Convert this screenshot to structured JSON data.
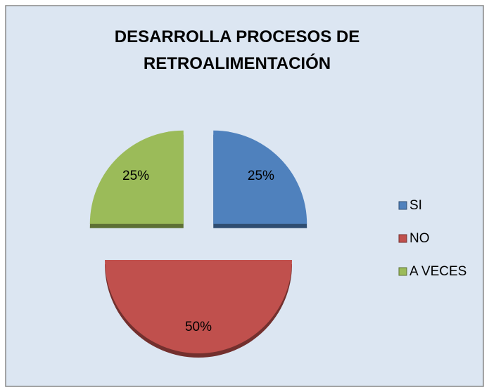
{
  "chart_data": {
    "type": "pie",
    "title": "DESARROLLA PROCESOS DE RETROALIMENTACIÓN",
    "categories": [
      "SI",
      "NO",
      "A VECES"
    ],
    "values": [
      25,
      50,
      25
    ],
    "value_labels": [
      "25%",
      "50%",
      "25%"
    ],
    "colors": [
      "#4f81bd",
      "#c0504d",
      "#9bbb59"
    ],
    "legend": "right"
  }
}
